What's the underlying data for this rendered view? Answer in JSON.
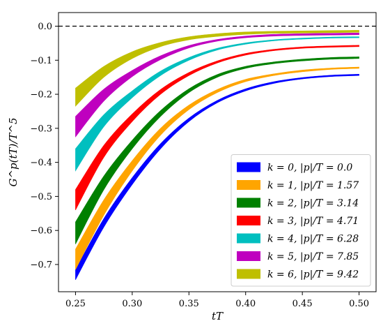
{
  "chart_data": {
    "type": "area",
    "title": "",
    "xlabel": "tT",
    "ylabel": "G^p(tT)/T^5",
    "xlim": [
      0.235,
      0.515
    ],
    "ylim": [
      -0.78,
      0.04
    ],
    "xticks": [
      0.25,
      0.3,
      0.35,
      0.4,
      0.45,
      0.5
    ],
    "xtick_labels": [
      "0.25",
      "0.30",
      "0.35",
      "0.40",
      "0.45",
      "0.50"
    ],
    "yticks": [
      0.0,
      -0.1,
      -0.2,
      -0.3,
      -0.4,
      -0.5,
      -0.6,
      -0.7
    ],
    "ytick_labels": [
      "0.0",
      "−0.1",
      "−0.2",
      "−0.3",
      "−0.4",
      "−0.5",
      "−0.6",
      "−0.7"
    ],
    "grid": false,
    "legend_position": "lower-right",
    "reference_line": {
      "y": 0.0,
      "style": "dashed",
      "color": "#000000"
    },
    "x": [
      0.25,
      0.275,
      0.3,
      0.325,
      0.35,
      0.375,
      0.4,
      0.425,
      0.45,
      0.475,
      0.5
    ],
    "series": [
      {
        "name": "k = 0, |p|/T = 0.0",
        "color": "#0000ff",
        "lower": [
          -0.745,
          -0.59,
          -0.465,
          -0.36,
          -0.28,
          -0.225,
          -0.19,
          -0.168,
          -0.155,
          -0.148,
          -0.145
        ],
        "upper": [
          -0.715,
          -0.565,
          -0.445,
          -0.345,
          -0.27,
          -0.218,
          -0.184,
          -0.163,
          -0.151,
          -0.144,
          -0.141
        ]
      },
      {
        "name": "k = 1, |p|/T = 1.57",
        "color": "#ffa500",
        "lower": [
          -0.715,
          -0.555,
          -0.425,
          -0.32,
          -0.245,
          -0.195,
          -0.163,
          -0.145,
          -0.134,
          -0.127,
          -0.124
        ],
        "upper": [
          -0.655,
          -0.51,
          -0.395,
          -0.3,
          -0.232,
          -0.186,
          -0.156,
          -0.14,
          -0.129,
          -0.123,
          -0.12
        ]
      },
      {
        "name": "k = 2, |p|/T = 3.14",
        "color": "#008000",
        "lower": [
          -0.64,
          -0.48,
          -0.36,
          -0.265,
          -0.195,
          -0.15,
          -0.124,
          -0.11,
          -0.102,
          -0.097,
          -0.095
        ],
        "upper": [
          -0.575,
          -0.44,
          -0.335,
          -0.248,
          -0.184,
          -0.142,
          -0.118,
          -0.105,
          -0.097,
          -0.092,
          -0.09
        ]
      },
      {
        "name": "k = 3, |p|/T = 4.71",
        "color": "#ff0000",
        "lower": [
          -0.54,
          -0.385,
          -0.28,
          -0.2,
          -0.145,
          -0.108,
          -0.085,
          -0.072,
          -0.065,
          -0.062,
          -0.06
        ],
        "upper": [
          -0.48,
          -0.35,
          -0.258,
          -0.186,
          -0.136,
          -0.102,
          -0.08,
          -0.068,
          -0.061,
          -0.058,
          -0.056
        ]
      },
      {
        "name": "k = 4, |p|/T = 6.28",
        "color": "#00bfbf",
        "lower": [
          -0.425,
          -0.295,
          -0.21,
          -0.145,
          -0.1,
          -0.07,
          -0.053,
          -0.043,
          -0.038,
          -0.035,
          -0.034
        ],
        "upper": [
          -0.36,
          -0.26,
          -0.19,
          -0.132,
          -0.092,
          -0.065,
          -0.049,
          -0.04,
          -0.035,
          -0.032,
          -0.031
        ]
      },
      {
        "name": "k = 5, |p|/T = 7.85",
        "color": "#bf00bf",
        "lower": [
          -0.325,
          -0.22,
          -0.148,
          -0.098,
          -0.064,
          -0.044,
          -0.034,
          -0.029,
          -0.027,
          -0.026,
          -0.025
        ],
        "upper": [
          -0.265,
          -0.185,
          -0.13,
          -0.087,
          -0.057,
          -0.039,
          -0.029,
          -0.024,
          -0.022,
          -0.021,
          -0.02
        ]
      },
      {
        "name": "k = 6, |p|/T = 9.42",
        "color": "#bfbf00",
        "lower": [
          -0.235,
          -0.15,
          -0.095,
          -0.06,
          -0.04,
          -0.03,
          -0.024,
          -0.021,
          -0.02,
          -0.019,
          -0.018
        ],
        "upper": [
          -0.182,
          -0.118,
          -0.075,
          -0.048,
          -0.031,
          -0.022,
          -0.017,
          -0.015,
          -0.014,
          -0.013,
          -0.012
        ]
      }
    ]
  }
}
